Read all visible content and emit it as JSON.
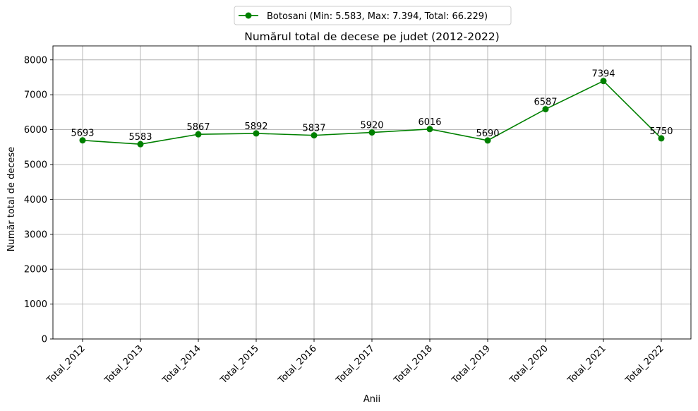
{
  "chart_data": {
    "type": "line",
    "title": "Numărul total de decese pe judet (2012-2022)",
    "xlabel": "Anii",
    "ylabel": "Număr total de decese",
    "categories": [
      "Total_2012",
      "Total_2013",
      "Total_2014",
      "Total_2015",
      "Total_2016",
      "Total_2017",
      "Total_2018",
      "Total_2019",
      "Total_2020",
      "Total_2021",
      "Total_2022"
    ],
    "series": [
      {
        "name": "Botosani (Min: 5.583, Max: 7.394, Total: 66.229)",
        "values": [
          5693,
          5583,
          5867,
          5892,
          5837,
          5920,
          6016,
          5690,
          6587,
          7394,
          5750
        ],
        "color": "#008000"
      }
    ],
    "ylim": [
      0,
      8400
    ],
    "yticks": [
      0,
      1000,
      2000,
      3000,
      4000,
      5000,
      6000,
      7000,
      8000
    ],
    "grid": true,
    "legend_position": "top-center"
  }
}
